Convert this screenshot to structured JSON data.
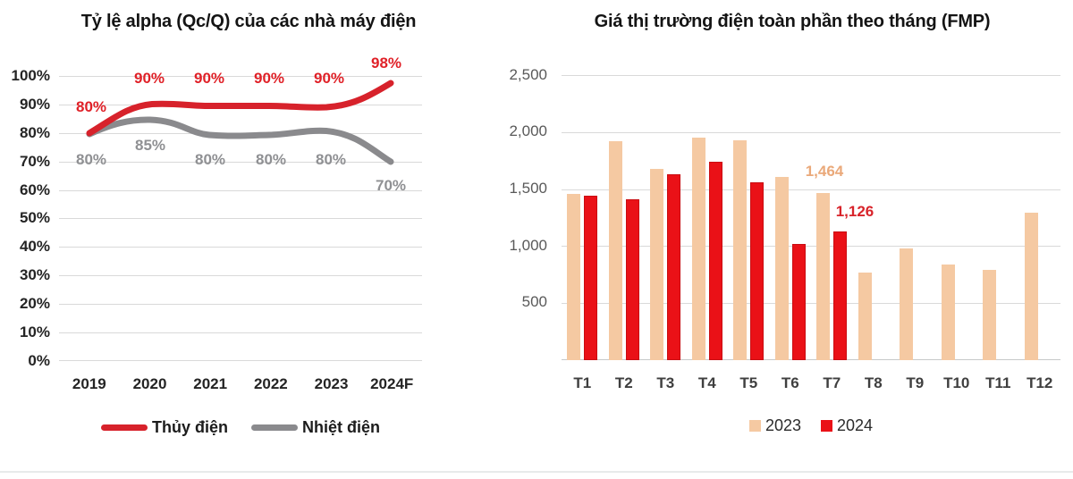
{
  "left_chart": {
    "title": "Tỷ lệ alpha (Qc/Q) của các nhà máy điện",
    "y_ticks": [
      "100%",
      "90%",
      "80%",
      "70%",
      "60%",
      "50%",
      "40%",
      "30%",
      "20%",
      "10%",
      "0%"
    ],
    "x_ticks": [
      "2019",
      "2020",
      "2021",
      "2022",
      "2023",
      "2024F"
    ],
    "red_labels": [
      "80%",
      "90%",
      "90%",
      "90%",
      "90%",
      "98%"
    ],
    "gray_labels": [
      "80%",
      "85%",
      "80%",
      "80%",
      "80%",
      "70%"
    ],
    "legend": {
      "red": "Thủy điện",
      "gray": "Nhiệt điện"
    },
    "colors": {
      "red_line": "#d7222b",
      "gray_line": "#8a8a8d",
      "gridline": "#d9d9d9"
    }
  },
  "right_chart": {
    "title": "Giá thị trường điện toàn phần theo tháng (FMP)",
    "y_ticks": [
      "2,500",
      "2,000",
      "1,500",
      "1,000",
      "500"
    ],
    "x_ticks": [
      "T1",
      "T2",
      "T3",
      "T4",
      "T5",
      "T6",
      "T7",
      "T8",
      "T9",
      "T10",
      "T11",
      "T12"
    ],
    "legend": {
      "s2023": "2023",
      "s2024": "2024"
    },
    "annotations": {
      "t7_2023": "1,464",
      "t7_2024": "1,126"
    },
    "colors": {
      "bar_2023": "#f5c9a2",
      "bar_2024": "#ea1117",
      "anno_2023": "#eaa97a",
      "anno_2024": "#d8232a"
    }
  },
  "chart_data": [
    {
      "type": "line",
      "title": "Tỷ lệ alpha (Qc/Q) của các nhà máy điện",
      "categories": [
        "2019",
        "2020",
        "2021",
        "2022",
        "2023",
        "2024F"
      ],
      "series": [
        {
          "name": "Thủy điện",
          "color": "#d7222b",
          "values": [
            80,
            90,
            90,
            90,
            90,
            98
          ]
        },
        {
          "name": "Nhiệt điện",
          "color": "#8a8a8d",
          "values": [
            80,
            85,
            80,
            80,
            80,
            70
          ]
        }
      ],
      "unit": "%",
      "ylim": [
        0,
        100
      ],
      "y_step": 10,
      "grid": true,
      "legend_position": "bottom"
    },
    {
      "type": "bar",
      "title": "Giá thị trường điện toàn phần theo tháng (FMP)",
      "categories": [
        "T1",
        "T2",
        "T3",
        "T4",
        "T5",
        "T6",
        "T7",
        "T8",
        "T9",
        "T10",
        "T11",
        "T12"
      ],
      "series": [
        {
          "name": "2023",
          "color": "#f5c9a2",
          "values": [
            1460,
            1920,
            1680,
            1950,
            1930,
            1610,
            1464,
            770,
            980,
            840,
            790,
            1290
          ]
        },
        {
          "name": "2024",
          "color": "#ea1117",
          "values": [
            1440,
            1410,
            1630,
            1740,
            1560,
            1020,
            1126,
            null,
            null,
            null,
            null,
            null
          ]
        }
      ],
      "ylim": [
        0,
        2500
      ],
      "y_step": 500,
      "grid": true,
      "data_labels": [
        {
          "category": "T7",
          "series": "2023",
          "text": "1,464"
        },
        {
          "category": "T7",
          "series": "2024",
          "text": "1,126"
        }
      ],
      "legend_position": "bottom"
    }
  ]
}
